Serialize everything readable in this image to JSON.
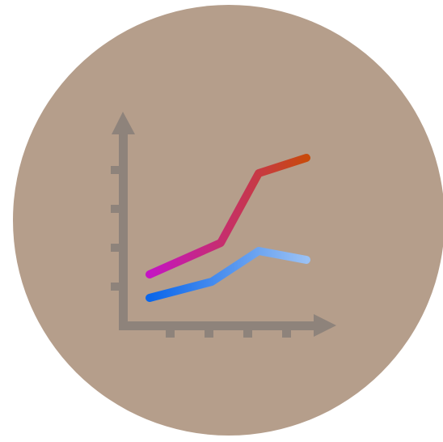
{
  "icon": {
    "name": "line-chart-icon",
    "colors": {
      "badge_background": "#b59e8b",
      "axes": "#8e837b",
      "upper_line_start": "#c415c3",
      "upper_line_end": "#c84a0b",
      "lower_line_start": "#0a66ea",
      "lower_line_end": "#9ac1f4"
    }
  }
}
